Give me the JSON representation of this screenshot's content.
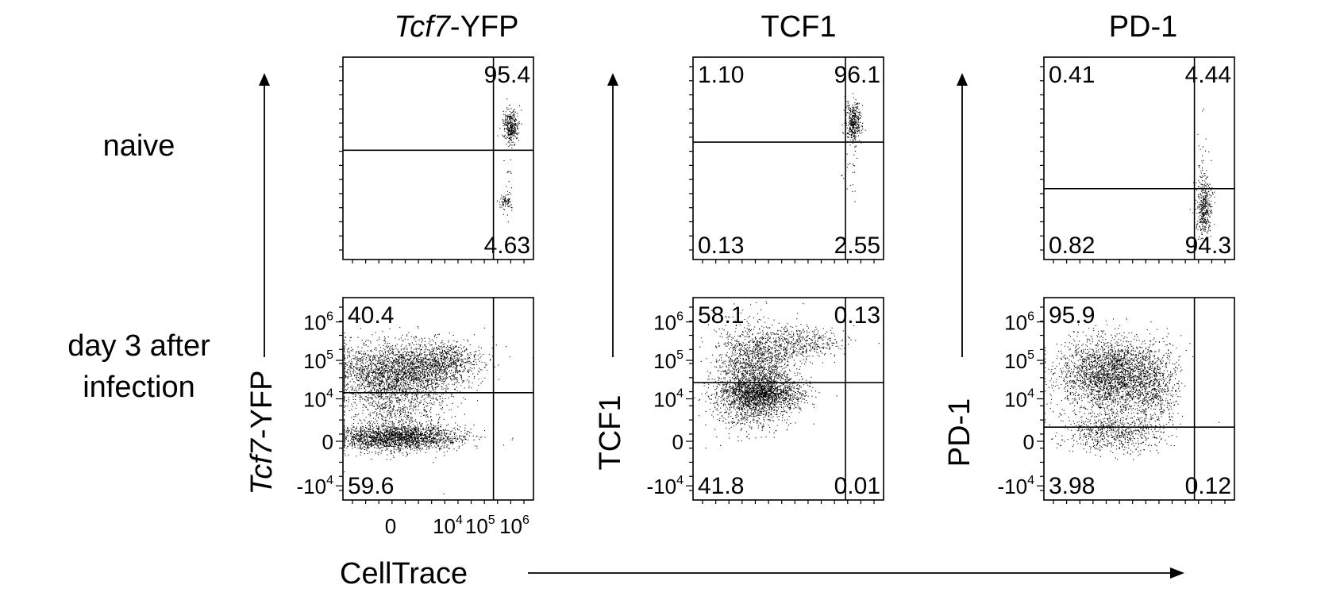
{
  "figure": {
    "column_titles": [
      {
        "italic": "Tcf7",
        "rest": "-YFP"
      },
      {
        "italic": "",
        "rest": "TCF1"
      },
      {
        "italic": "",
        "rest": "PD-1"
      }
    ],
    "row_labels": [
      {
        "lines": [
          "naive"
        ]
      },
      {
        "lines": [
          "day 3 after",
          "infection"
        ]
      }
    ],
    "x_axis_label": "CellTrace",
    "y_axis_labels": [
      {
        "italic": "Tcf7",
        "rest": "-YFP"
      },
      {
        "italic": "",
        "rest": "TCF1"
      },
      {
        "italic": "",
        "rest": "PD-1"
      }
    ]
  },
  "chart_data": [
    {
      "type": "scatter",
      "marker": "Tcf7-YFP",
      "condition": "naive",
      "x": "CellTrace",
      "y": "Tcf7-YFP",
      "quadrants": {
        "upper_left": "",
        "upper_right": "95.4",
        "lower_left": "",
        "lower_right": "4.63"
      },
      "y_ticks": []
    },
    {
      "type": "scatter",
      "marker": "TCF1",
      "condition": "naive",
      "x": "CellTrace",
      "y": "TCF1",
      "quadrants": {
        "upper_left": "1.10",
        "upper_right": "96.1",
        "lower_left": "0.13",
        "lower_right": "2.55"
      },
      "y_ticks": []
    },
    {
      "type": "scatter",
      "marker": "PD-1",
      "condition": "naive",
      "x": "CellTrace",
      "y": "PD-1",
      "quadrants": {
        "upper_left": "0.41",
        "upper_right": "4.44",
        "lower_left": "0.82",
        "lower_right": "94.3"
      },
      "y_ticks": []
    },
    {
      "type": "scatter",
      "marker": "Tcf7-YFP",
      "condition": "day 3 after infection",
      "x": "CellTrace",
      "y": "Tcf7-YFP",
      "quadrants": {
        "upper_left": "40.4",
        "upper_right": "",
        "lower_left": "59.6",
        "lower_right": ""
      },
      "y_ticks": [
        {
          "base": "10",
          "exp": "6"
        },
        {
          "base": "10",
          "exp": "5"
        },
        {
          "base": "10",
          "exp": "4"
        },
        {
          "base": "0",
          "exp": ""
        },
        {
          "base": "-10",
          "exp": "4"
        }
      ],
      "x_ticks": [
        {
          "base": "0",
          "exp": ""
        },
        {
          "base": "10",
          "exp": "4"
        },
        {
          "base": "10",
          "exp": "5"
        },
        {
          "base": "10",
          "exp": "6"
        }
      ]
    },
    {
      "type": "scatter",
      "marker": "TCF1",
      "condition": "day 3 after infection",
      "x": "CellTrace",
      "y": "TCF1",
      "quadrants": {
        "upper_left": "58.1",
        "upper_right": "0.13",
        "lower_left": "41.8",
        "lower_right": "0.01"
      },
      "y_ticks": [
        {
          "base": "10",
          "exp": "6"
        },
        {
          "base": "10",
          "exp": "5"
        },
        {
          "base": "10",
          "exp": "4"
        },
        {
          "base": "0",
          "exp": ""
        },
        {
          "base": "-10",
          "exp": "4"
        }
      ]
    },
    {
      "type": "scatter",
      "marker": "PD-1",
      "condition": "day 3 after infection",
      "x": "CellTrace",
      "y": "PD-1",
      "quadrants": {
        "upper_left": "95.9",
        "upper_right": "",
        "lower_left": "3.98",
        "lower_right": "0.12"
      },
      "y_ticks": [
        {
          "base": "10",
          "exp": "6"
        },
        {
          "base": "10",
          "exp": "5"
        },
        {
          "base": "10",
          "exp": "4"
        },
        {
          "base": "0",
          "exp": ""
        },
        {
          "base": "-10",
          "exp": "4"
        }
      ]
    }
  ]
}
